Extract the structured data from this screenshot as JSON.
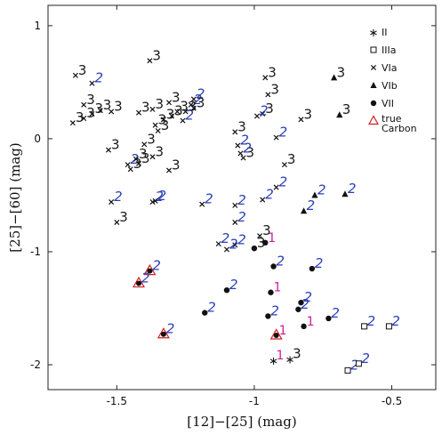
{
  "chart_data": {
    "type": "scatter",
    "title": "",
    "xlabel": "[12]−[25] (mag)",
    "ylabel": "[25]−[60] (mag)",
    "xlim": [
      -1.75,
      -0.34
    ],
    "ylim": [
      -2.22,
      1.18
    ],
    "xticks": [
      -1.5,
      -1,
      -0.5
    ],
    "xtick_labels": [
      "-1.5",
      "-1",
      "-0.5"
    ],
    "yticks": [
      -2,
      -1,
      0,
      1
    ],
    "ytick_labels": [
      "-2",
      "-1",
      "0",
      "1"
    ],
    "grid": false,
    "legend_position": "top-right",
    "label_colors": {
      "1": "#cc1f9c",
      "2": "#2a3fb8",
      "3": "#1a1a1a"
    },
    "series": [
      {
        "name": "II",
        "marker": "star",
        "points": [
          {
            "x": -0.93,
            "y": -1.96,
            "label": "1"
          },
          {
            "x": -0.87,
            "y": -1.95,
            "label": "3"
          }
        ]
      },
      {
        "name": "IIIa",
        "marker": "square",
        "points": [
          {
            "x": -0.66,
            "y": -2.05,
            "label": "2"
          },
          {
            "x": -0.62,
            "y": -1.99,
            "label": "2"
          },
          {
            "x": -0.6,
            "y": -1.66,
            "label": "2"
          },
          {
            "x": -0.51,
            "y": -1.66,
            "label": "2"
          }
        ]
      },
      {
        "name": "VIa",
        "marker": "cross",
        "points": [
          {
            "x": -1.65,
            "y": 0.56,
            "label": "3"
          },
          {
            "x": -1.59,
            "y": 0.49,
            "label": "2"
          },
          {
            "x": -1.62,
            "y": 0.3,
            "label": "3"
          },
          {
            "x": -1.56,
            "y": 0.25,
            "label": "3"
          },
          {
            "x": -1.66,
            "y": 0.14,
            "label": "3"
          },
          {
            "x": -1.62,
            "y": 0.18,
            "label": "3"
          },
          {
            "x": -1.59,
            "y": 0.22,
            "label": "3"
          },
          {
            "x": -1.52,
            "y": 0.24,
            "label": "3"
          },
          {
            "x": -1.38,
            "y": 0.69,
            "label": "3"
          },
          {
            "x": -1.42,
            "y": 0.23,
            "label": "3"
          },
          {
            "x": -1.37,
            "y": 0.26,
            "label": "3"
          },
          {
            "x": -1.31,
            "y": 0.32,
            "label": "3"
          },
          {
            "x": -1.28,
            "y": 0.24,
            "label": "3"
          },
          {
            "x": -1.3,
            "y": 0.2,
            "label": "3"
          },
          {
            "x": -1.33,
            "y": 0.17,
            "label": "3"
          },
          {
            "x": -1.36,
            "y": 0.12,
            "label": "3"
          },
          {
            "x": -1.35,
            "y": 0.07,
            "label": "3"
          },
          {
            "x": -1.22,
            "y": 0.35,
            "label": "2"
          },
          {
            "x": -1.23,
            "y": 0.3,
            "label": "2"
          },
          {
            "x": -1.25,
            "y": 0.24,
            "label": "3"
          },
          {
            "x": -1.26,
            "y": 0.16,
            "label": "2"
          },
          {
            "x": -1.22,
            "y": 0.27,
            "label": "3"
          },
          {
            "x": -1.4,
            "y": -0.05,
            "label": "3"
          },
          {
            "x": -1.53,
            "y": -0.1,
            "label": "3"
          },
          {
            "x": -1.37,
            "y": -0.16,
            "label": "3"
          },
          {
            "x": -1.31,
            "y": -0.28,
            "label": "3"
          },
          {
            "x": -1.45,
            "y": -0.27,
            "label": "3"
          },
          {
            "x": -1.42,
            "y": -0.22,
            "label": "3"
          },
          {
            "x": -1.46,
            "y": -0.23,
            "label": "2"
          },
          {
            "x": -1.43,
            "y": -0.18,
            "label": "3"
          },
          {
            "x": -1.52,
            "y": -0.56,
            "label": "2"
          },
          {
            "x": -1.37,
            "y": -0.56,
            "label": "2"
          },
          {
            "x": -1.36,
            "y": -0.55,
            "label": "2"
          },
          {
            "x": -1.5,
            "y": -0.74,
            "label": "3"
          },
          {
            "x": -0.96,
            "y": 0.54,
            "label": "3"
          },
          {
            "x": -0.95,
            "y": 0.39,
            "label": "3"
          },
          {
            "x": -0.97,
            "y": 0.22,
            "label": "3"
          },
          {
            "x": -0.99,
            "y": 0.2,
            "label": "2"
          },
          {
            "x": -0.83,
            "y": 0.17,
            "label": "3"
          },
          {
            "x": -1.07,
            "y": 0.06,
            "label": "3"
          },
          {
            "x": -0.92,
            "y": 0.01,
            "label": "2"
          },
          {
            "x": -1.06,
            "y": -0.06,
            "label": "2"
          },
          {
            "x": -1.04,
            "y": -0.17,
            "label": "3"
          },
          {
            "x": -1.05,
            "y": -0.13,
            "label": "2"
          },
          {
            "x": -0.89,
            "y": -0.23,
            "label": "3"
          },
          {
            "x": -0.92,
            "y": -0.43,
            "label": "2"
          },
          {
            "x": -1.19,
            "y": -0.58,
            "label": "2"
          },
          {
            "x": -1.07,
            "y": -0.59,
            "label": "2"
          },
          {
            "x": -0.97,
            "y": -0.54,
            "label": "2"
          },
          {
            "x": -1.07,
            "y": -0.74,
            "label": "2"
          },
          {
            "x": -0.98,
            "y": -0.86,
            "label": "3"
          },
          {
            "x": -1.13,
            "y": -0.93,
            "label": "2"
          },
          {
            "x": -1.07,
            "y": -0.94,
            "label": "2"
          },
          {
            "x": -1.1,
            "y": -0.98,
            "label": "2"
          }
        ]
      },
      {
        "name": "VIb",
        "marker": "triangle",
        "points": [
          {
            "x": -0.71,
            "y": 0.54,
            "label": "3"
          },
          {
            "x": -0.69,
            "y": 0.21,
            "label": "3"
          },
          {
            "x": -0.78,
            "y": -0.5,
            "label": "2"
          },
          {
            "x": -0.67,
            "y": -0.49,
            "label": "2"
          },
          {
            "x": -0.82,
            "y": -0.64,
            "label": "2"
          }
        ]
      },
      {
        "name": "VII",
        "marker": "dot",
        "points": [
          {
            "x": -1.0,
            "y": -0.97,
            "label": "3"
          },
          {
            "x": -0.96,
            "y": -0.92,
            "label": "1"
          },
          {
            "x": -0.93,
            "y": -1.13,
            "label": "2"
          },
          {
            "x": -0.79,
            "y": -1.15,
            "label": "2"
          },
          {
            "x": -1.1,
            "y": -1.34,
            "label": "2"
          },
          {
            "x": -0.94,
            "y": -1.36,
            "label": "1"
          },
          {
            "x": -0.83,
            "y": -1.45,
            "label": "2"
          },
          {
            "x": -1.18,
            "y": -1.54,
            "label": "2"
          },
          {
            "x": -0.95,
            "y": -1.57,
            "label": "2"
          },
          {
            "x": -0.84,
            "y": -1.51,
            "label": "2"
          },
          {
            "x": -0.82,
            "y": -1.66,
            "label": "1"
          },
          {
            "x": -0.73,
            "y": -1.59,
            "label": "2"
          }
        ]
      },
      {
        "name": "true Carbon",
        "marker": "dot-in-triangle",
        "points": [
          {
            "x": -1.38,
            "y": -1.17,
            "label": "2"
          },
          {
            "x": -1.42,
            "y": -1.28,
            "label": "2"
          },
          {
            "x": -1.33,
            "y": -1.73,
            "label": "2"
          },
          {
            "x": -0.92,
            "y": -1.74,
            "label": "1"
          }
        ]
      }
    ]
  }
}
